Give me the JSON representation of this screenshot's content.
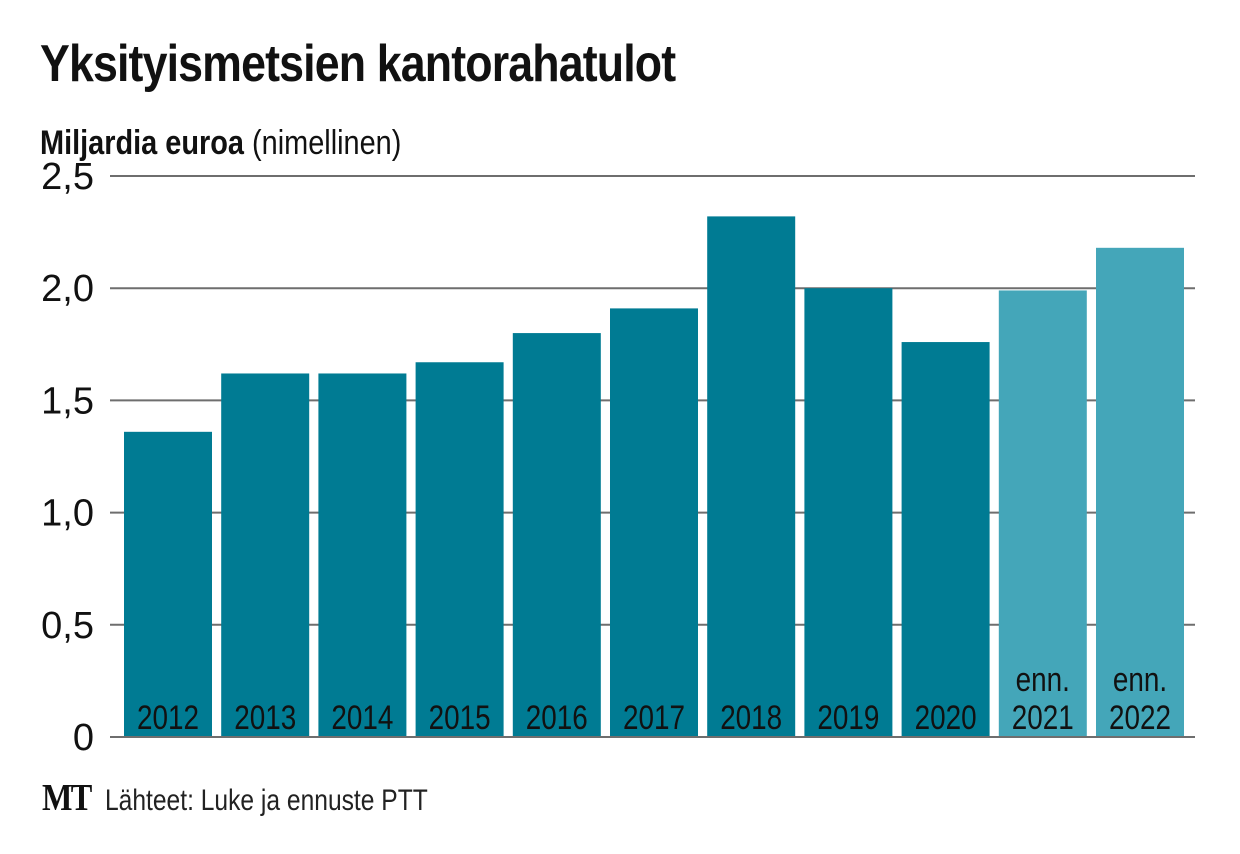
{
  "title": "Yksityismetsien kantorahatulot",
  "subtitle": {
    "bold": "Miljardia euroa",
    "normal": "(nimellinen)"
  },
  "footer": {
    "logo": "MT",
    "source": "Lähteet: Luke ja ennuste PTT"
  },
  "colors": {
    "actual": "#007b93",
    "forecast": "#44a6b9",
    "grid": "#6e6e6e",
    "label": "#111111"
  },
  "chart_data": {
    "type": "bar",
    "title": "Yksityismetsien kantorahatulot",
    "ylabel": "Miljardia euroa (nimellinen)",
    "xlabel": "",
    "ylim": [
      0,
      2.5
    ],
    "yticks": [
      0,
      0.5,
      1.0,
      1.5,
      2.0,
      2.5
    ],
    "ytick_labels": [
      "0",
      "0,5",
      "1,0",
      "1,5",
      "2,0",
      "2,5"
    ],
    "grid": true,
    "categories": [
      "2012",
      "2013",
      "2014",
      "2015",
      "2016",
      "2017",
      "2018",
      "2019",
      "2020",
      "2021",
      "2022"
    ],
    "category_prefix": [
      "",
      "",
      "",
      "",
      "",
      "",
      "",
      "",
      "",
      "enn.",
      "enn."
    ],
    "values": [
      1.36,
      1.62,
      1.62,
      1.67,
      1.8,
      1.91,
      2.32,
      2.0,
      1.76,
      1.99,
      2.18
    ],
    "forecast": [
      false,
      false,
      false,
      false,
      false,
      false,
      false,
      false,
      false,
      true,
      true
    ]
  }
}
